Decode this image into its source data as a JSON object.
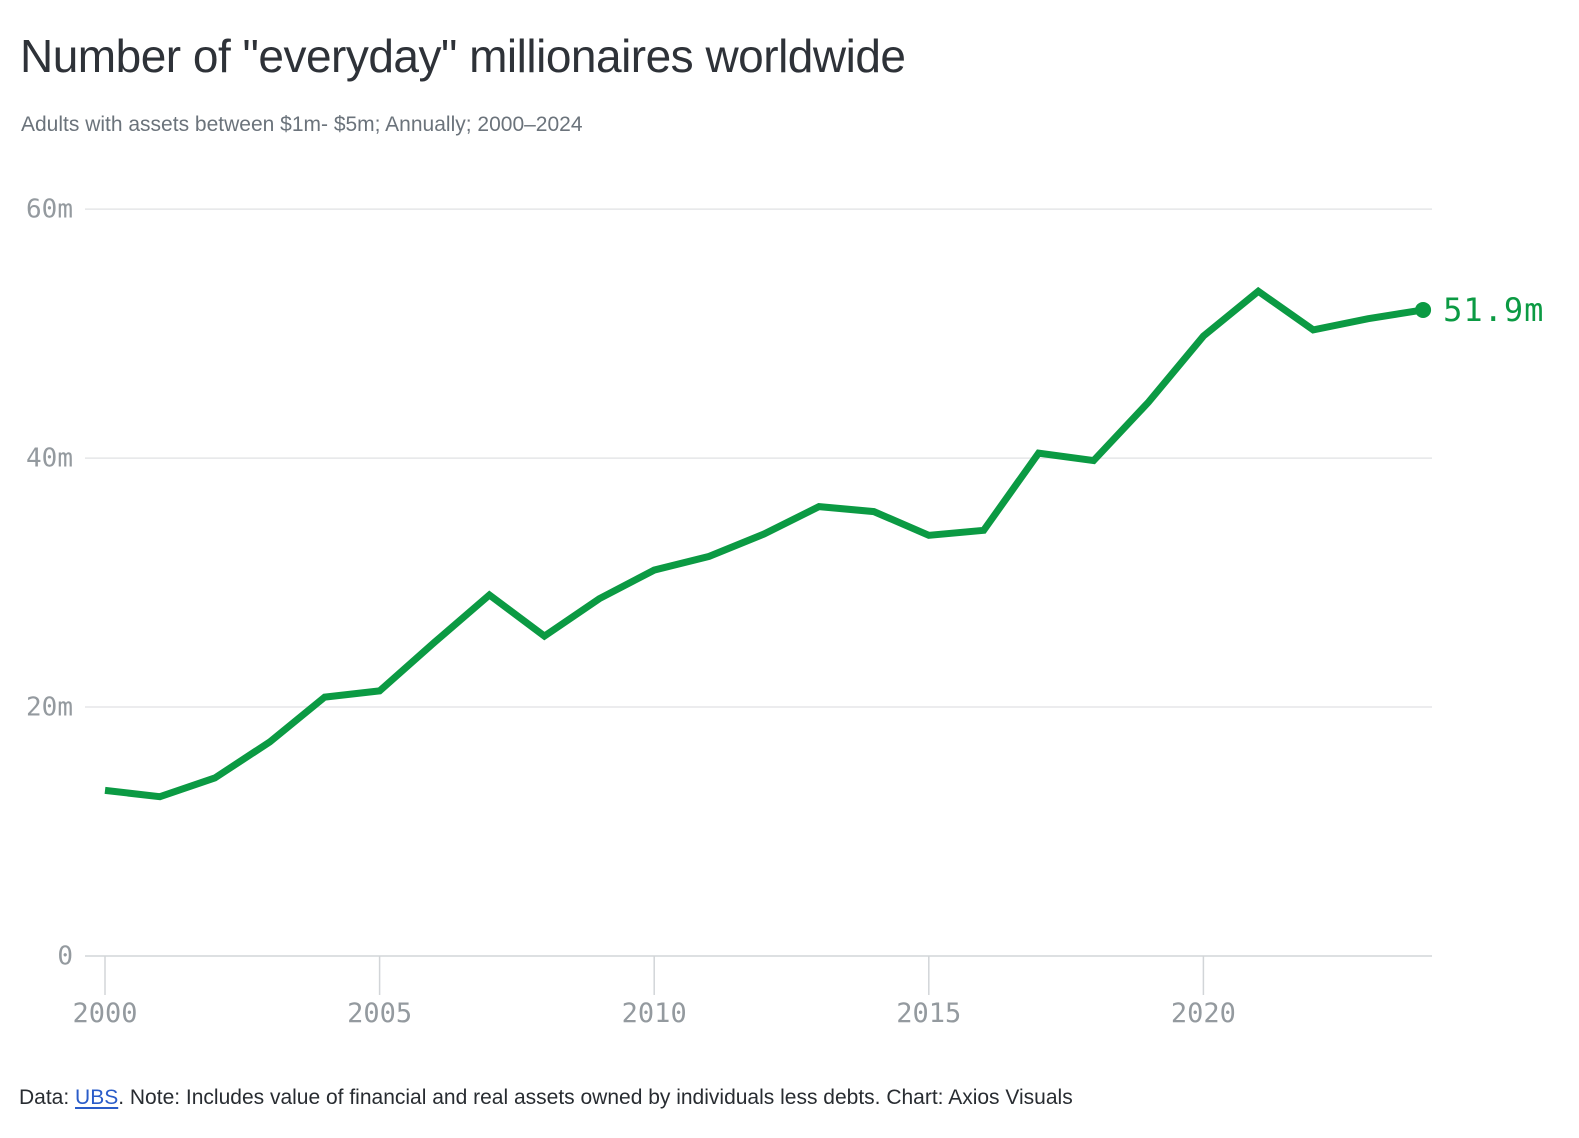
{
  "header": {
    "title": "Number of \"everyday\" millionaires worldwide",
    "subtitle": "Adults with assets between $1m- $5m; Annually; 2000–2024"
  },
  "chart_data": {
    "type": "line",
    "title": "Number of \"everyday\" millionaires worldwide",
    "subtitle": "Adults with assets between $1m- $5m; Annually; 2000–2024",
    "unit": "millions of adults",
    "xlim": [
      2000,
      2024
    ],
    "ylim": [
      0,
      60
    ],
    "grid": "horizontal",
    "legend": "none",
    "x_ticks": [
      2000,
      2005,
      2010,
      2015,
      2020
    ],
    "y_ticks": [
      {
        "value": 0,
        "label": "0"
      },
      {
        "value": 20,
        "label": "20m"
      },
      {
        "value": 40,
        "label": "40m"
      },
      {
        "value": 60,
        "label": "60m"
      }
    ],
    "series": [
      {
        "name": "Everyday millionaires worldwide",
        "x": [
          2000,
          2001,
          2002,
          2003,
          2004,
          2005,
          2006,
          2007,
          2008,
          2009,
          2010,
          2011,
          2012,
          2013,
          2014,
          2015,
          2016,
          2017,
          2018,
          2019,
          2020,
          2021,
          2022,
          2023,
          2024
        ],
        "values": [
          13.3,
          12.8,
          14.3,
          17.2,
          20.8,
          21.3,
          25.2,
          29.0,
          25.7,
          28.7,
          31.0,
          32.1,
          33.9,
          36.1,
          35.7,
          33.8,
          34.2,
          40.4,
          39.8,
          44.5,
          49.8,
          53.4,
          50.3,
          51.2,
          51.9
        ]
      }
    ],
    "end_label": "51.9m",
    "line_color": "#0b9a43",
    "axis_label_color": "#949a9f",
    "gridline_color": "#e5e6e8",
    "axis_line_color": "#d2d5d8"
  },
  "footer": {
    "prefix": "Data: ",
    "link": "UBS",
    "suffix": ". Note: Includes value of financial and real assets owned by individuals less debts. Chart: Axios Visuals",
    "link_color": "#2a5cc9"
  }
}
